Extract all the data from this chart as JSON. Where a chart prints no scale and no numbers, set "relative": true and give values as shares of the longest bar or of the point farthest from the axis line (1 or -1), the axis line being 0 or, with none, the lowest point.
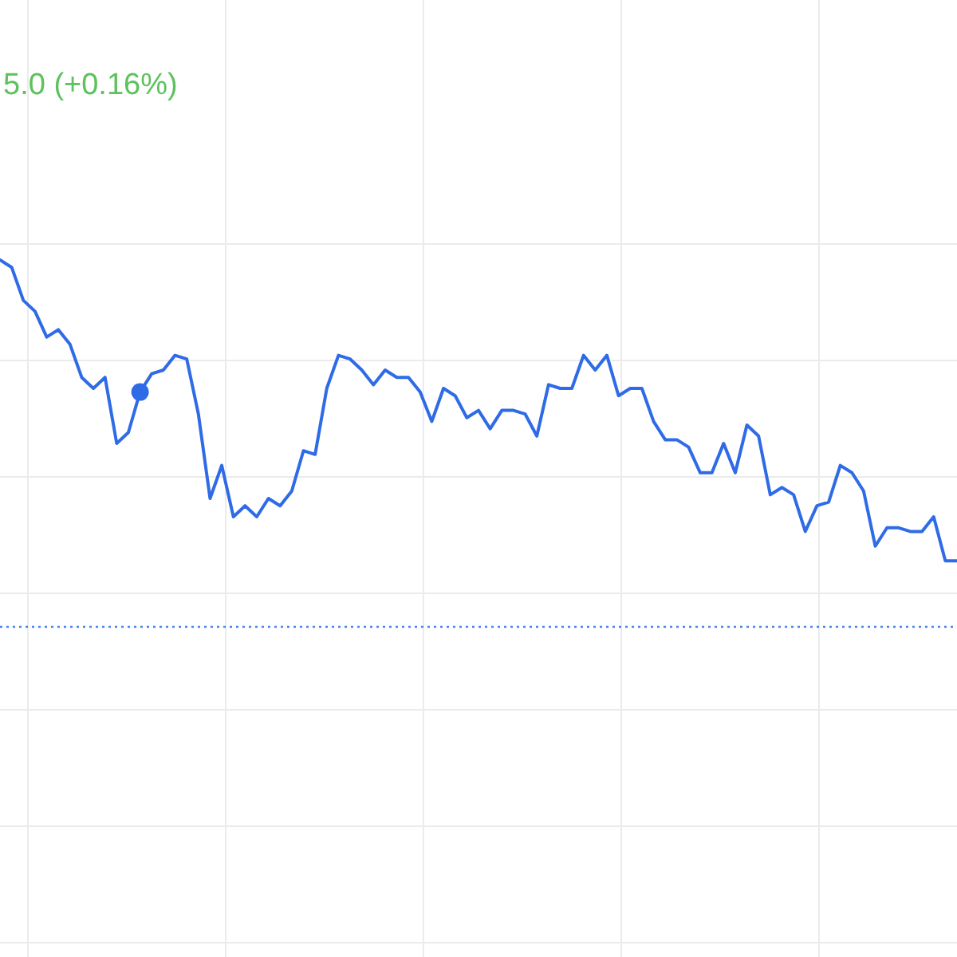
{
  "chart_data": {
    "type": "line",
    "relative": true,
    "grid": true,
    "marker": "none",
    "line_style": "solid",
    "categories": [
      null,
      null,
      null,
      null,
      null,
      null,
      null,
      null,
      null,
      null,
      null,
      null,
      null,
      null,
      null,
      null,
      null,
      null,
      null,
      null,
      null,
      null,
      null,
      null,
      null,
      null,
      null,
      null,
      null,
      null,
      null,
      null,
      null,
      null,
      null,
      null,
      null,
      null,
      null,
      null,
      null,
      null,
      null,
      null,
      null,
      null,
      null,
      null,
      null,
      null,
      null,
      null,
      null,
      null,
      null,
      null,
      null,
      null,
      null,
      null,
      null,
      null,
      null,
      null,
      null,
      null,
      null,
      null,
      null,
      null,
      null,
      null,
      null,
      null,
      null,
      null,
      null,
      null,
      null,
      null,
      null,
      null,
      null
    ],
    "series": [
      {
        "color": "#2f6be6",
        "values": [
          1.0,
          0.98,
          0.89,
          0.86,
          0.79,
          0.81,
          0.77,
          0.68,
          0.65,
          0.68,
          0.5,
          0.53,
          0.64,
          0.69,
          0.7,
          0.74,
          0.73,
          0.58,
          0.35,
          0.44,
          0.3,
          0.33,
          0.3,
          0.35,
          0.33,
          0.37,
          0.48,
          0.47,
          0.65,
          0.74,
          0.73,
          0.7,
          0.66,
          0.7,
          0.68,
          0.68,
          0.64,
          0.56,
          0.65,
          0.63,
          0.57,
          0.59,
          0.54,
          0.59,
          0.59,
          0.58,
          0.52,
          0.66,
          0.65,
          0.65,
          0.74,
          0.7,
          0.74,
          0.63,
          0.65,
          0.65,
          0.56,
          0.51,
          0.51,
          0.49,
          0.42,
          0.42,
          0.5,
          0.42,
          0.55,
          0.52,
          0.36,
          0.38,
          0.36,
          0.26,
          0.33,
          0.34,
          0.44,
          0.42,
          0.37,
          0.22,
          0.27,
          0.27,
          0.26,
          0.26,
          0.3,
          0.18,
          0.18
        ]
      }
    ],
    "ref_lines": [
      {
        "axis": "y",
        "value": 0,
        "color": "#4a86e8",
        "line_style": "dotted"
      }
    ],
    "annotations": [
      "5.0 (+0.16%)"
    ]
  }
}
